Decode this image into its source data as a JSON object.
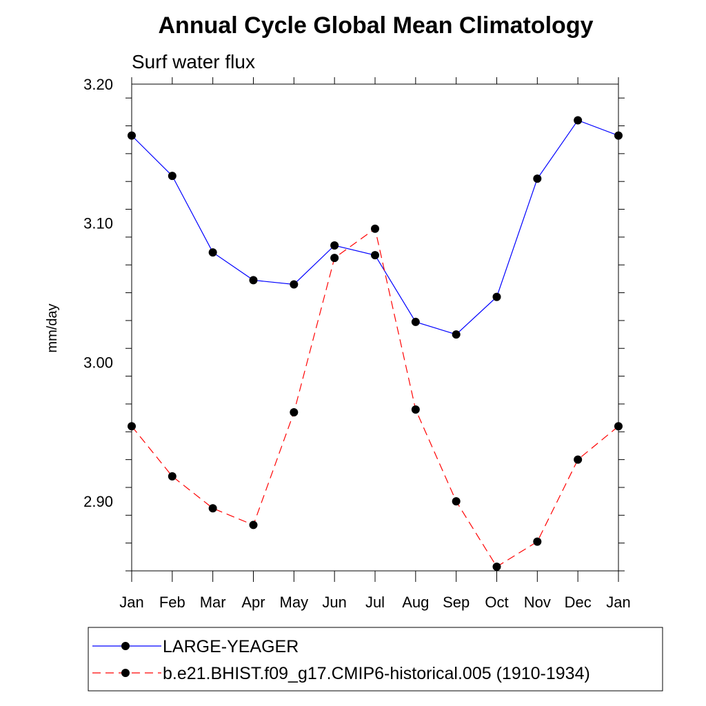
{
  "page": {
    "title": "Annual Cycle Global Mean Climatology",
    "subtitle": "Surf water flux"
  },
  "chart_data": {
    "type": "line",
    "title": "Annual Cycle Global Mean Climatology",
    "subtitle": "Surf water flux",
    "xlabel": "",
    "ylabel": "mm/day",
    "categories": [
      "Jan",
      "Feb",
      "Mar",
      "Apr",
      "May",
      "Jun",
      "Jul",
      "Aug",
      "Sep",
      "Oct",
      "Nov",
      "Dec",
      "Jan"
    ],
    "y_tick_labels": [
      "2.90",
      "3.00",
      "3.10",
      "3.20"
    ],
    "y_ticks": [
      2.9,
      3.0,
      3.1,
      3.2
    ],
    "ylim": [
      2.85,
      3.2
    ],
    "grid": false,
    "legend_placement": "bottom",
    "series": [
      {
        "name": "LARGE-YEAGER",
        "color": "#0000ff",
        "dash": "solid",
        "marker": "filled-circle",
        "values": [
          3.163,
          3.134,
          3.079,
          3.059,
          3.056,
          3.084,
          3.077,
          3.029,
          3.02,
          3.047,
          3.132,
          3.174,
          3.163
        ]
      },
      {
        "name": "b.e21.BHIST.f09_g17.CMIP6-historical.005 (1910-1934)",
        "color": "#ff0000",
        "dash": "dashed",
        "marker": "filled-circle",
        "values": [
          2.954,
          2.918,
          2.895,
          2.883,
          2.964,
          3.075,
          3.096,
          2.966,
          2.9,
          2.853,
          2.871,
          2.93,
          2.954
        ]
      }
    ]
  }
}
